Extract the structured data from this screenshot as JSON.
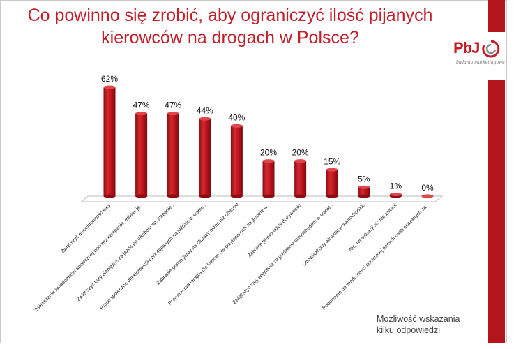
{
  "title": {
    "line1": "Co powinno się zrobić, aby ograniczyć ilość pijanych",
    "line2": "kierowców na drogach w Polsce?"
  },
  "logo": {
    "text": "PbJ",
    "tagline": "badania marketingowe"
  },
  "footnote": {
    "line1": "Możliwość  wskazania",
    "line2": "kilku odpowiedzi"
  },
  "colors": {
    "bar": "#c3151d",
    "bar_dark": "#8d0d13",
    "bar_light": "#e0474d",
    "accent": "#b3151d"
  },
  "chart_data": {
    "type": "bar",
    "title": "Co powinno się zrobić, aby ograniczyć ilość pijanych kierowców na drogach w Polsce?",
    "unit": "%",
    "ylim": [
      0,
      62
    ],
    "categories": [
      "Zwiększyć nieuchronność kary.",
      "Zwiększanie świadomości społecznej poprzez kampanie, edukację...",
      "Zwiększyć kary pieniężne za jazdę po alkoholu np. złapanie...",
      "Prace społeczne dla kierowców przyłapanych na jeździe w stanie...",
      "Zabranie prawo jazdy na dłuższy okres niż obecnie",
      "Przymusowa terapia dla kierowców przyłapanych na jeździe w...",
      "Zabrane prawo jazdy dożywotnio.",
      "Zwiększyć kary więzienia za jeżdżenie samochodem w stanie...",
      "Obowiązkowy alkomat w samochodzie.",
      "Nic, tej sytuacji nic nie zmieni.",
      "Podawanie do wiadomości publicznej danych osób skazanych za..."
    ],
    "values": [
      62,
      47,
      47,
      44,
      40,
      20,
      20,
      15,
      5,
      1,
      0
    ],
    "labels": [
      "62%",
      "47%",
      "47%",
      "44%",
      "40%",
      "20%",
      "20%",
      "15%",
      "5%",
      "1%",
      "0%"
    ]
  }
}
